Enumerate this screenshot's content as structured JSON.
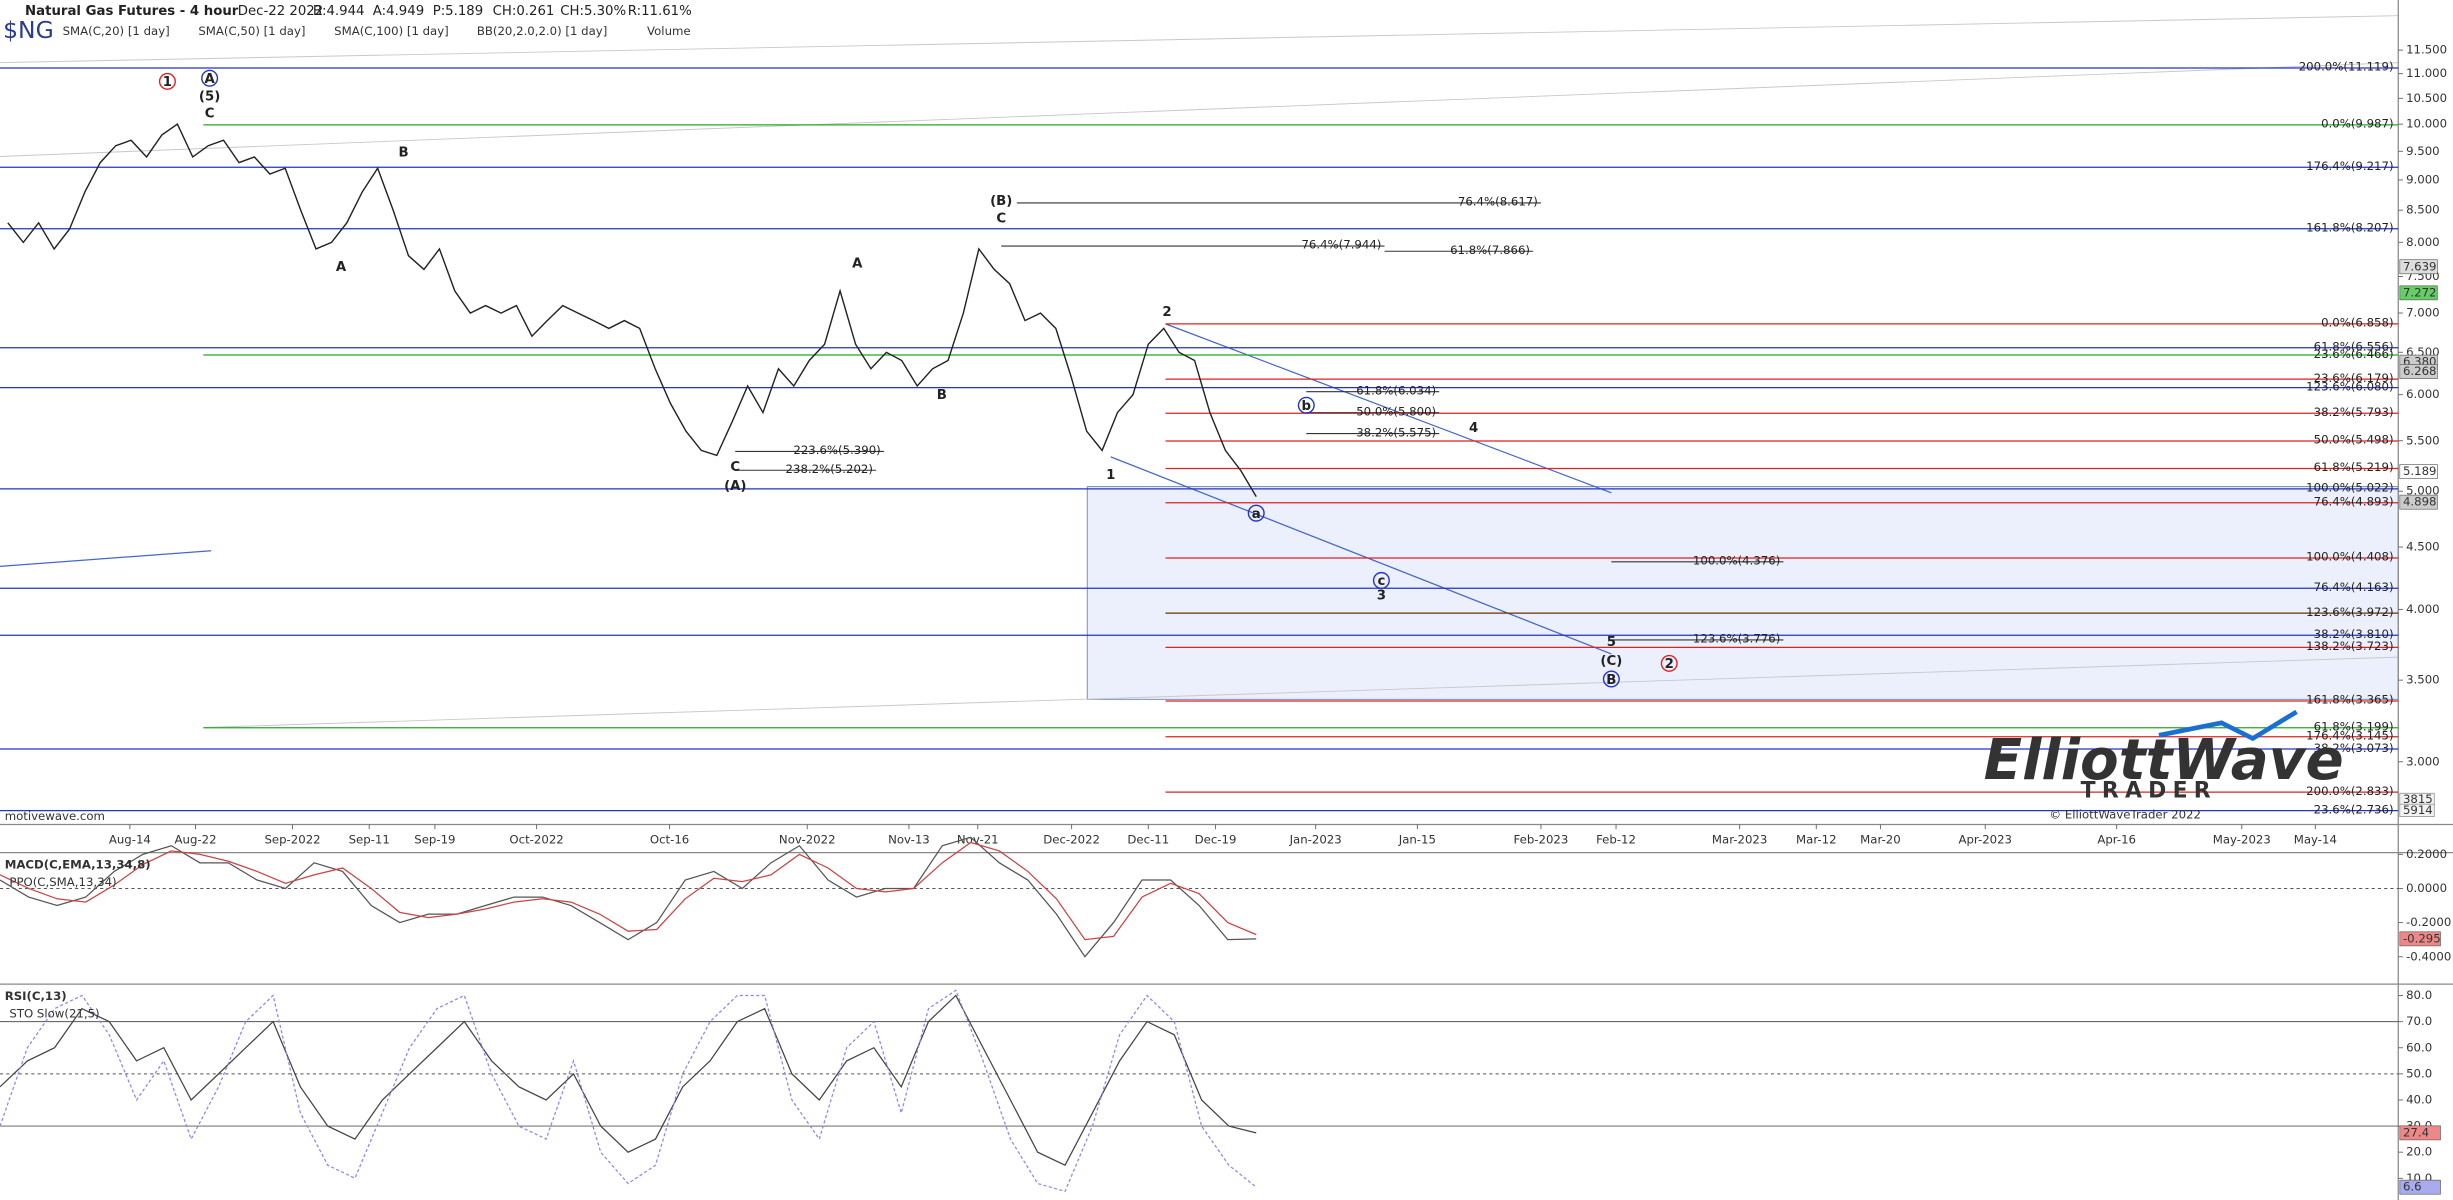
{
  "header": {
    "title": "Natural Gas Futures - 4 hour",
    "date": "Dec-22 2022",
    "stats": [
      "B:4.944",
      "A:4.949",
      "P:5.189",
      "CH:0.261",
      "CH:5.30%",
      "R:11.61%"
    ],
    "symbol": "$NG",
    "indicators": [
      "SMA(C,20) [1 day]",
      "SMA(C,50) [1 day]",
      "SMA(C,100) [1 day]",
      "BB(20,2.0,2.0) [1 day]",
      "Volume"
    ],
    "source": "motivewave.com",
    "logo": "ElliottWave",
    "logo_sub": "TRADER",
    "copyright": "© ElliottWaveTrader 2022"
  },
  "chart_data": [
    {
      "type": "line",
      "log_scale": true,
      "ylim": [
        2.665,
        12.64
      ],
      "yticks": [
        {
          "value": 11.5,
          "label": "11.500"
        },
        {
          "value": 11,
          "label": "11.000"
        },
        {
          "value": 10.5,
          "label": "10.500"
        },
        {
          "value": 10,
          "label": "10.000"
        },
        {
          "value": 9.5,
          "label": "9.500"
        },
        {
          "value": 9,
          "label": "9.000"
        },
        {
          "value": 8.5,
          "label": "8.500"
        },
        {
          "value": 8,
          "label": "8.000"
        },
        {
          "value": 7.5,
          "label": "7.500"
        },
        {
          "value": 7,
          "label": "7.000"
        },
        {
          "value": 6.5,
          "label": "6.500"
        },
        {
          "value": 6,
          "label": "6.000"
        },
        {
          "value": 5.5,
          "label": "5.500"
        },
        {
          "value": 5,
          "label": "5.000"
        },
        {
          "value": 4.5,
          "label": "4.500"
        },
        {
          "value": 4,
          "label": "4.000"
        },
        {
          "value": 3.5,
          "label": "3.500"
        },
        {
          "value": 3,
          "label": "3.000"
        }
      ],
      "xtick_labels": [
        "Aug-14",
        "Aug-22",
        "Sep-2022",
        "Sep-11",
        "Sep-19",
        "Oct-2022",
        "Oct-16",
        "Nov-2022",
        "Nov-13",
        "Nov-21",
        "Dec-2022",
        "Dec-11",
        "Dec-19",
        "Jan-2023",
        "Jan-15",
        "Feb-2023",
        "Feb-12",
        "Mar-2023",
        "Mar-12",
        "Mar-20",
        "Apr-2023",
        "Apr-16",
        "May-2023",
        "May-14"
      ],
      "series": [
        {
          "name": "$NG",
          "color": "#222222",
          "values": [
            8.3,
            8.0,
            8.3,
            7.9,
            8.2,
            8.8,
            9.3,
            9.6,
            9.7,
            9.4,
            9.8,
            10.0,
            9.4,
            9.6,
            9.7,
            9.3,
            9.4,
            9.1,
            9.2,
            8.5,
            7.9,
            8.0,
            8.3,
            8.8,
            9.2,
            8.5,
            7.8,
            7.6,
            7.9,
            7.3,
            7.0,
            7.1,
            7.0,
            7.1,
            6.7,
            6.9,
            7.1,
            7.0,
            6.9,
            6.8,
            6.9,
            6.8,
            6.3,
            5.9,
            5.6,
            5.4,
            5.35,
            5.7,
            6.1,
            5.8,
            6.3,
            6.1,
            6.4,
            6.6,
            7.3,
            6.6,
            6.3,
            6.5,
            6.4,
            6.1,
            6.3,
            6.4,
            7.0,
            7.9,
            7.6,
            7.4,
            6.9,
            7.0,
            6.8,
            6.2,
            5.6,
            5.4,
            5.8,
            6.0,
            6.6,
            6.8,
            6.5,
            6.4,
            5.8,
            5.4,
            5.2,
            4.95
          ]
        }
      ],
      "levels": [
        {
          "label": "200.0%(11.119)",
          "value": 11.119,
          "color": "#2233cc"
        },
        {
          "label": "0.0%(9.987)",
          "value": 9.987,
          "color": "#22aa22"
        },
        {
          "label": "176.4%(9.217)",
          "value": 9.217,
          "color": "#2233cc"
        },
        {
          "label": "161.8%(8.207)",
          "value": 8.207,
          "color": "#2233cc"
        },
        {
          "label": "0.0%(6.858)",
          "value": 6.858,
          "color": "#dd2222"
        },
        {
          "label": "61.8%(6.556)",
          "value": 6.556,
          "color": "#2233cc"
        },
        {
          "label": "23.6%(6.466)",
          "value": 6.466,
          "color": "#22aa22"
        },
        {
          "label": "23.6%(6.179)",
          "value": 6.179,
          "color": "#dd2222"
        },
        {
          "label": "123.6%(6.080)",
          "value": 6.08,
          "color": "#2233cc"
        },
        {
          "label": "38.2%(5.793)",
          "value": 5.793,
          "color": "#dd2222"
        },
        {
          "label": "50.0%(5.498)",
          "value": 5.498,
          "color": "#dd2222"
        },
        {
          "label": "61.8%(5.219)",
          "value": 5.219,
          "color": "#dd2222"
        },
        {
          "label": "100.0%(5.022)",
          "value": 5.022,
          "color": "#2233cc"
        },
        {
          "label": "76.4%(4.893)",
          "value": 4.893,
          "color": "#dd2222"
        },
        {
          "label": "100.0%(4.408)",
          "value": 4.408,
          "color": "#dd2222"
        },
        {
          "label": "76.4%(4.163)",
          "value": 4.163,
          "color": "#2233cc"
        },
        {
          "label": "123.6%(3.972)",
          "value": 3.972,
          "color": "#663300"
        },
        {
          "label": "38.2%(3.810)",
          "value": 3.81,
          "color": "#2233cc"
        },
        {
          "label": "138.2%(3.723)",
          "value": 3.723,
          "color": "#dd2222"
        },
        {
          "label": "161.8%(3.365)",
          "value": 3.365,
          "color": "#dd2222"
        },
        {
          "label": "61.8%(3.199)",
          "value": 3.199,
          "color": "#22aa22"
        },
        {
          "label": "176.4%(3.145)",
          "value": 3.145,
          "color": "#dd2222"
        },
        {
          "label": "38.2%(3.073)",
          "value": 3.073,
          "color": "#2233cc"
        },
        {
          "label": "200.0%(2.833)",
          "value": 2.833,
          "color": "#dd2222"
        },
        {
          "label": "23.6%(2.736)",
          "value": 2.736,
          "color": "#2233cc"
        }
      ],
      "inline_levels": [
        {
          "label": "76.4%(8.617)",
          "value": 8.617
        },
        {
          "label": "76.4%(7.944)",
          "value": 7.944
        },
        {
          "label": "61.8%(7.866)",
          "value": 7.866
        },
        {
          "label": "61.8%(6.034)",
          "value": 6.034
        },
        {
          "label": "50.0%(5.800)",
          "value": 5.8
        },
        {
          "label": "38.2%(5.575)",
          "value": 5.575
        },
        {
          "label": "223.6%(5.390)",
          "value": 5.39
        },
        {
          "label": "238.2%(5.202)",
          "value": 5.202
        },
        {
          "label": "100.0%(4.376)",
          "value": 4.376
        },
        {
          "label": "123.6%(3.776)",
          "value": 3.776
        }
      ],
      "last_values": [
        {
          "label": "7.639",
          "value": 7.639,
          "color": "#dddddd"
        },
        {
          "label": "7.272",
          "value": 7.272,
          "color": "#66cc66"
        },
        {
          "label": "6.380",
          "value": 6.38,
          "color": "#cccccc"
        },
        {
          "label": "6.268",
          "value": 6.268,
          "color": "#cccccc"
        },
        {
          "label": "5.189",
          "value": 5.189,
          "color": "#ffffff"
        },
        {
          "label": "4.898",
          "value": 4.898,
          "color": "#cccccc"
        }
      ],
      "volume_labels": [
        "3815",
        "5914"
      ],
      "wave_labels": [
        {
          "text": "1",
          "color": "#dd2222",
          "circle": true
        },
        {
          "text": "A",
          "color": "#2233cc",
          "circle": true
        },
        {
          "text": "(5)",
          "color": "#2233cc"
        },
        {
          "text": "C",
          "color": "#2233cc"
        },
        {
          "text": "B",
          "color": "#2233cc"
        },
        {
          "text": "A",
          "color": "#2233cc"
        },
        {
          "text": "C",
          "color": "#2233cc"
        },
        {
          "text": "(A)",
          "color": "#2233cc"
        },
        {
          "text": "A",
          "color": "#2233cc"
        },
        {
          "text": "B",
          "color": "#2233cc"
        },
        {
          "text": "(B)",
          "color": "#2233cc"
        },
        {
          "text": "C",
          "color": "#2233cc"
        },
        {
          "text": "2",
          "color": "#2233cc"
        },
        {
          "text": "1",
          "color": "#2233cc"
        },
        {
          "text": "a",
          "color": "#2233cc",
          "circle": true
        },
        {
          "text": "b",
          "color": "#2233cc",
          "circle": true
        },
        {
          "text": "4",
          "color": "#2233cc"
        },
        {
          "text": "c",
          "color": "#2233cc",
          "circle": true
        },
        {
          "text": "3",
          "color": "#2233cc"
        },
        {
          "text": "5",
          "color": "#2233cc"
        },
        {
          "text": "(C)",
          "color": "#2233cc"
        },
        {
          "text": "B",
          "color": "#2233cc",
          "circle": true
        },
        {
          "text": "2",
          "color": "#dd2222",
          "circle": true
        }
      ]
    },
    {
      "type": "line",
      "title": "MACD(C,EMA,13,34,8)",
      "subtitle": "PPO(C,SMA,13,34)",
      "ylim": [
        -0.56,
        0.21
      ],
      "yticks": [
        {
          "value": 0.2,
          "label": "0.2000"
        },
        {
          "value": 0,
          "label": "0.0000"
        },
        {
          "value": -0.2,
          "label": "-0.2000"
        },
        {
          "value": -0.4,
          "label": "-0.4000"
        }
      ],
      "series": [
        {
          "name": "MACD",
          "color": "#555555",
          "values": [
            0.05,
            -0.05,
            -0.1,
            -0.05,
            0.1,
            0.2,
            0.25,
            0.15,
            0.15,
            0.05,
            0.0,
            0.15,
            0.1,
            -0.1,
            -0.2,
            -0.15,
            -0.15,
            -0.1,
            -0.05,
            -0.05,
            -0.1,
            -0.2,
            -0.3,
            -0.2,
            0.05,
            0.1,
            0.0,
            0.15,
            0.25,
            0.05,
            -0.05,
            0.0,
            0.0,
            0.25,
            0.3,
            0.15,
            0.05,
            -0.15,
            -0.4,
            -0.2,
            0.05,
            0.05,
            -0.1,
            -0.3,
            -0.295
          ]
        },
        {
          "name": "Signal",
          "color": "#cc4444",
          "values": [
            0.08,
            0.0,
            -0.06,
            -0.08,
            0.02,
            0.14,
            0.22,
            0.2,
            0.16,
            0.1,
            0.03,
            0.08,
            0.12,
            0.0,
            -0.14,
            -0.17,
            -0.15,
            -0.12,
            -0.08,
            -0.06,
            -0.08,
            -0.15,
            -0.25,
            -0.24,
            -0.06,
            0.06,
            0.04,
            0.08,
            0.2,
            0.12,
            0.0,
            -0.02,
            0.0,
            0.15,
            0.27,
            0.22,
            0.1,
            -0.06,
            -0.3,
            -0.28,
            -0.05,
            0.03,
            -0.03,
            -0.2,
            -0.27
          ]
        }
      ],
      "last_value": {
        "label": "-0.295",
        "value": -0.295,
        "color": "#ee8888"
      }
    },
    {
      "type": "line",
      "title": "RSI(C,13)",
      "subtitle": "STO Slow(21,5)",
      "ylim": [
        1.7,
        84.4
      ],
      "yticks": [
        {
          "value": 80,
          "label": "80.0"
        },
        {
          "value": 70,
          "label": "70.0"
        },
        {
          "value": 60,
          "label": "60.0"
        },
        {
          "value": 50,
          "label": "50.0"
        },
        {
          "value": 40,
          "label": "40.0"
        },
        {
          "value": 30,
          "label": "30.0"
        },
        {
          "value": 20,
          "label": "20.0"
        },
        {
          "value": 10,
          "label": "10.0"
        }
      ],
      "series": [
        {
          "name": "RSI",
          "color": "#444444",
          "values": [
            45,
            55,
            60,
            75,
            70,
            55,
            60,
            40,
            50,
            60,
            70,
            45,
            30,
            25,
            40,
            50,
            60,
            70,
            55,
            45,
            40,
            50,
            30,
            20,
            25,
            45,
            55,
            70,
            75,
            50,
            40,
            55,
            60,
            45,
            70,
            80,
            60,
            40,
            20,
            15,
            35,
            55,
            70,
            65,
            40,
            30,
            27.4
          ]
        },
        {
          "name": "STO Slow",
          "color": "#8888ee",
          "values": [
            30,
            60,
            75,
            80,
            65,
            40,
            55,
            25,
            45,
            70,
            80,
            35,
            15,
            10,
            35,
            60,
            75,
            80,
            50,
            30,
            25,
            55,
            20,
            8,
            15,
            50,
            70,
            80,
            80,
            40,
            25,
            60,
            70,
            35,
            75,
            82,
            55,
            25,
            8,
            5,
            30,
            65,
            80,
            70,
            30,
            15,
            6.6
          ]
        }
      ],
      "last_values": [
        {
          "label": "27.4",
          "value": 27.4,
          "color": "#ee8888"
        },
        {
          "label": "6.6",
          "value": 6.6,
          "color": "#aaaaee"
        }
      ]
    }
  ]
}
